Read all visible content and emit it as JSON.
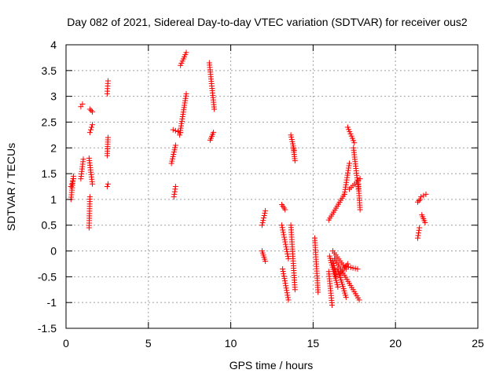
{
  "chart_data": {
    "type": "scatter",
    "title": "Day 082 of 2021, Sidereal Day-to-day VTEC variation (SDTVAR) for receiver ous2",
    "xlabel": "GPS time / hours",
    "ylabel": "SDTVAR / TECUs",
    "xlim": [
      0,
      25
    ],
    "ylim": [
      -1.5,
      4
    ],
    "xticks": [
      0,
      5,
      10,
      15,
      20,
      25
    ],
    "yticks": [
      -1.5,
      -1,
      -0.5,
      0,
      0.5,
      1,
      1.5,
      2,
      2.5,
      3,
      3.5,
      4
    ],
    "xtick_labels": [
      "0",
      "5",
      "10",
      "15",
      "20",
      "25"
    ],
    "ytick_labels": [
      "-1.5",
      "-1",
      "-0.5",
      "0",
      "0.5",
      "1",
      "1.5",
      "2",
      "2.5",
      "3",
      "3.5",
      "4"
    ],
    "grid": true,
    "marker": "+",
    "marker_color": "#ff0000",
    "segments": [
      {
        "x": [
          0.3,
          0.45
        ],
        "y": [
          1.0,
          1.45
        ]
      },
      {
        "x": [
          0.3,
          0.45
        ],
        "y": [
          1.25,
          1.4
        ]
      },
      {
        "x": [
          0.9,
          1.0
        ],
        "y": [
          2.8,
          2.85
        ]
      },
      {
        "x": [
          0.9,
          1.05
        ],
        "y": [
          1.4,
          1.78
        ]
      },
      {
        "x": [
          1.4,
          1.45
        ],
        "y": [
          0.45,
          1.05
        ]
      },
      {
        "x": [
          1.4,
          1.6
        ],
        "y": [
          1.8,
          1.3
        ]
      },
      {
        "x": [
          1.45,
          1.6
        ],
        "y": [
          2.3,
          2.45
        ]
      },
      {
        "x": [
          1.45,
          1.6
        ],
        "y": [
          2.75,
          2.7
        ]
      },
      {
        "x": [
          2.5,
          2.55
        ],
        "y": [
          1.25,
          1.3
        ]
      },
      {
        "x": [
          2.5,
          2.55
        ],
        "y": [
          1.85,
          2.2
        ]
      },
      {
        "x": [
          2.5,
          2.55
        ],
        "y": [
          3.05,
          3.3
        ]
      },
      {
        "x": [
          6.55,
          6.65
        ],
        "y": [
          1.05,
          1.25
        ]
      },
      {
        "x": [
          6.4,
          6.65
        ],
        "y": [
          1.7,
          2.05
        ]
      },
      {
        "x": [
          6.5,
          6.95
        ],
        "y": [
          2.35,
          2.3
        ]
      },
      {
        "x": [
          6.9,
          7.3
        ],
        "y": [
          2.25,
          3.05
        ]
      },
      {
        "x": [
          6.95,
          7.3
        ],
        "y": [
          3.6,
          3.85
        ]
      },
      {
        "x": [
          8.75,
          8.95
        ],
        "y": [
          2.15,
          2.3
        ]
      },
      {
        "x": [
          8.7,
          9.0
        ],
        "y": [
          3.65,
          2.75
        ]
      },
      {
        "x": [
          11.9,
          12.1
        ],
        "y": [
          0.5,
          0.78
        ]
      },
      {
        "x": [
          11.9,
          12.1
        ],
        "y": [
          0.0,
          -0.2
        ]
      },
      {
        "x": [
          13.1,
          13.3
        ],
        "y": [
          0.9,
          0.8
        ]
      },
      {
        "x": [
          13.1,
          13.5
        ],
        "y": [
          0.5,
          -0.15
        ]
      },
      {
        "x": [
          13.15,
          13.5
        ],
        "y": [
          -0.35,
          -0.95
        ]
      },
      {
        "x": [
          13.65,
          13.85
        ],
        "y": [
          2.25,
          1.95
        ]
      },
      {
        "x": [
          13.8,
          13.9
        ],
        "y": [
          2.0,
          1.75
        ]
      },
      {
        "x": [
          13.65,
          13.9
        ],
        "y": [
          0.5,
          -0.75
        ]
      },
      {
        "x": [
          15.1,
          15.3
        ],
        "y": [
          0.25,
          -0.8
        ]
      },
      {
        "x": [
          15.95,
          16.9
        ],
        "y": [
          0.6,
          1.1
        ]
      },
      {
        "x": [
          16.9,
          17.2
        ],
        "y": [
          1.1,
          1.7
        ]
      },
      {
        "x": [
          17.1,
          17.5
        ],
        "y": [
          2.4,
          2.1
        ]
      },
      {
        "x": [
          17.45,
          17.75
        ],
        "y": [
          2.0,
          1.2
        ]
      },
      {
        "x": [
          17.2,
          17.85
        ],
        "y": [
          1.2,
          1.4
        ]
      },
      {
        "x": [
          17.75,
          17.85
        ],
        "y": [
          1.3,
          0.8
        ]
      },
      {
        "x": [
          15.95,
          16.15
        ],
        "y": [
          -0.4,
          -1.05
        ]
      },
      {
        "x": [
          16.0,
          16.5
        ],
        "y": [
          -0.1,
          -0.7
        ]
      },
      {
        "x": [
          16.2,
          17.0
        ],
        "y": [
          0.0,
          -0.35
        ]
      },
      {
        "x": [
          16.3,
          17.8
        ],
        "y": [
          -0.15,
          -0.95
        ]
      },
      {
        "x": [
          16.5,
          17.0
        ],
        "y": [
          -0.35,
          -0.9
        ]
      },
      {
        "x": [
          16.6,
          17.1
        ],
        "y": [
          -0.45,
          -0.25
        ]
      },
      {
        "x": [
          17.0,
          17.7
        ],
        "y": [
          -0.3,
          -0.35
        ]
      },
      {
        "x": [
          16.2,
          16.4
        ],
        "y": [
          -0.2,
          -0.5
        ]
      },
      {
        "x": [
          21.35,
          21.45
        ],
        "y": [
          0.25,
          0.45
        ]
      },
      {
        "x": [
          21.35,
          21.5
        ],
        "y": [
          0.95,
          1.0
        ]
      },
      {
        "x": [
          21.6,
          21.8
        ],
        "y": [
          0.7,
          0.55
        ]
      },
      {
        "x": [
          21.55,
          21.85
        ],
        "y": [
          1.05,
          1.1
        ]
      }
    ]
  }
}
